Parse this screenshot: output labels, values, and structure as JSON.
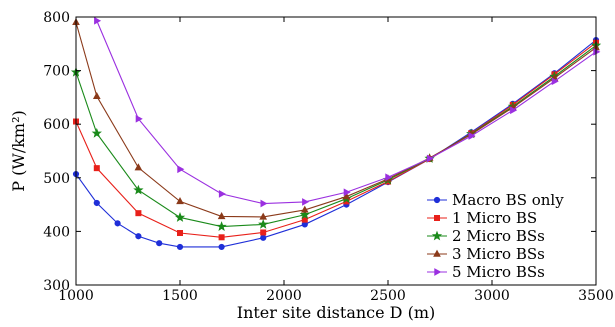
{
  "chart_data": {
    "type": "line",
    "xlabel": "Inter site distance D (m)",
    "ylabel": "P (W/km²)",
    "xlim": [
      1000,
      3500
    ],
    "ylim": [
      300,
      800
    ],
    "xticks": [
      1000,
      1500,
      2000,
      2500,
      3000,
      3500
    ],
    "yticks": [
      300,
      400,
      500,
      600,
      700,
      800
    ],
    "legend_position": "center-right",
    "grid": false,
    "series": [
      {
        "name": "Macro BS only",
        "color": "#1f2fd8",
        "marker": "circle",
        "x": [
          1000,
          1100,
          1200,
          1300,
          1400,
          1500,
          1700,
          1900,
          2100,
          2300,
          2500,
          2700,
          2900,
          3100,
          3300,
          3500
        ],
        "y": [
          507,
          453,
          415,
          391,
          378,
          371,
          371,
          388,
          413,
          450,
          492,
          535,
          585,
          638,
          695,
          757
        ]
      },
      {
        "name": "1 Micro BS",
        "color": "#e8201a",
        "marker": "square",
        "x": [
          1000,
          1100,
          1300,
          1500,
          1700,
          1900,
          2100,
          2300,
          2500,
          2700,
          2900,
          3100,
          3300,
          3500
        ],
        "y": [
          605,
          518,
          434,
          397,
          389,
          398,
          422,
          456,
          493,
          535,
          583,
          636,
          693,
          752
        ]
      },
      {
        "name": "2 Micro BSs",
        "color": "#1a8a1a",
        "marker": "star",
        "x": [
          1000,
          1100,
          1300,
          1500,
          1700,
          1900,
          2100,
          2300,
          2500,
          2700,
          2900,
          3100,
          3300,
          3500
        ],
        "y": [
          697,
          583,
          477,
          426,
          409,
          413,
          431,
          461,
          496,
          536,
          582,
          633,
          689,
          747
        ]
      },
      {
        "name": "3 Micro BSs",
        "color": "#8b3a1a",
        "marker": "triangle",
        "x": [
          1000,
          1100,
          1300,
          1500,
          1700,
          1900,
          2100,
          2300,
          2500,
          2700,
          2900,
          3100,
          3300,
          3500
        ],
        "y": [
          790,
          652,
          519,
          456,
          428,
          427,
          440,
          465,
          498,
          537,
          581,
          631,
          686,
          743
        ]
      },
      {
        "name": "5 Micro BSs",
        "color": "#9b30e0",
        "marker": "triangle-right",
        "x": [
          1100,
          1300,
          1500,
          1700,
          1900,
          2100,
          2300,
          2500,
          2700,
          2900,
          3100,
          3300,
          3500
        ],
        "y": [
          793,
          610,
          516,
          470,
          452,
          455,
          473,
          501,
          536,
          578,
          626,
          680,
          735
        ]
      }
    ]
  }
}
